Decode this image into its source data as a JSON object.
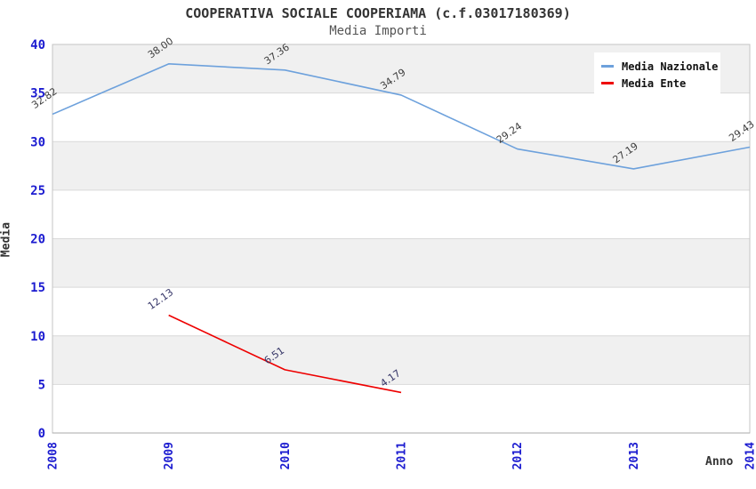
{
  "header": {
    "title": "COOPERATIVA SOCIALE COOPERIAMA (c.f.03017180369)",
    "subtitle": "Media Importi"
  },
  "axes": {
    "y_title": "Media",
    "x_title": "Anno"
  },
  "legend": {
    "items": [
      {
        "label": "Media Nazionale",
        "color": "#6da1dc"
      },
      {
        "label": "Media Ente",
        "color": "#ee0000"
      }
    ]
  },
  "chart_data": {
    "type": "line",
    "title": "COOPERATIVA SOCIALE COOPERIAMA (c.f.03017180369)",
    "subtitle": "Media Importi",
    "categories": [
      "2008",
      "2009",
      "2010",
      "2011",
      "2012",
      "2013",
      "2014"
    ],
    "series": [
      {
        "name": "Media Nazionale",
        "color": "#6da1dc",
        "label_color": "#3d3d3d",
        "values": [
          32.82,
          38.0,
          37.36,
          34.79,
          29.24,
          27.19,
          29.43
        ]
      },
      {
        "name": "Media Ente",
        "color": "#ee0000",
        "label_color": "#333366",
        "values": [
          null,
          12.13,
          6.51,
          4.17,
          null,
          null,
          null
        ]
      }
    ],
    "xlabel": "Anno",
    "ylabel": "Media",
    "ylim": [
      0,
      40
    ],
    "ytick_step": 5,
    "tick_color": "#1b1bd0",
    "band_colors": [
      "#f0f0f0",
      "#ffffff"
    ],
    "grid": "horizontal",
    "legend_position": "top-right",
    "value_labels_shown": true
  }
}
